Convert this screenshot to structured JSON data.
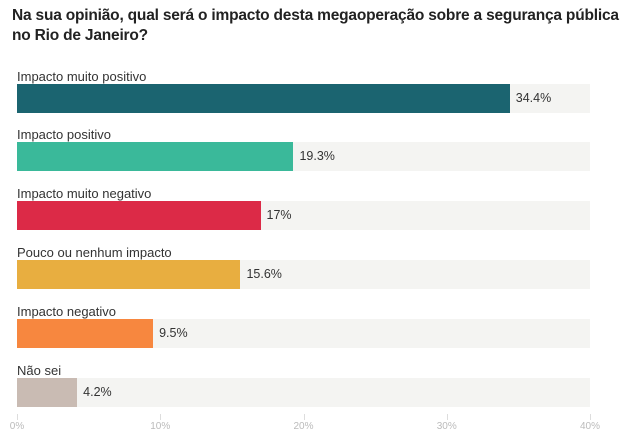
{
  "chart_data": {
    "type": "bar",
    "orientation": "horizontal",
    "title": "Na sua opinião, qual será o impacto desta megaoperação sobre a segurança pública no Rio de Janeiro?",
    "categories": [
      "Impacto muito positivo",
      "Impacto positivo",
      "Impacto muito negativo",
      "Pouco ou nenhum impacto",
      "Impacto negativo",
      "Não sei"
    ],
    "values": [
      34.4,
      19.3,
      17,
      15.6,
      9.5,
      4.2
    ],
    "value_labels": [
      "34.4%",
      "19.3%",
      "17%",
      "15.6%",
      "9.5%",
      "4.2%"
    ],
    "colors": [
      "#1b6470",
      "#3ab99a",
      "#dc2a47",
      "#e8ae40",
      "#f7873f",
      "#c9bbb3"
    ],
    "track_color": "#f4f4f2",
    "xlim": [
      0,
      40
    ],
    "ticks": [
      0,
      10,
      20,
      30,
      40
    ],
    "tick_labels": [
      "0%",
      "10%",
      "20%",
      "30%",
      "40%"
    ],
    "grid": false,
    "legend": "none"
  }
}
